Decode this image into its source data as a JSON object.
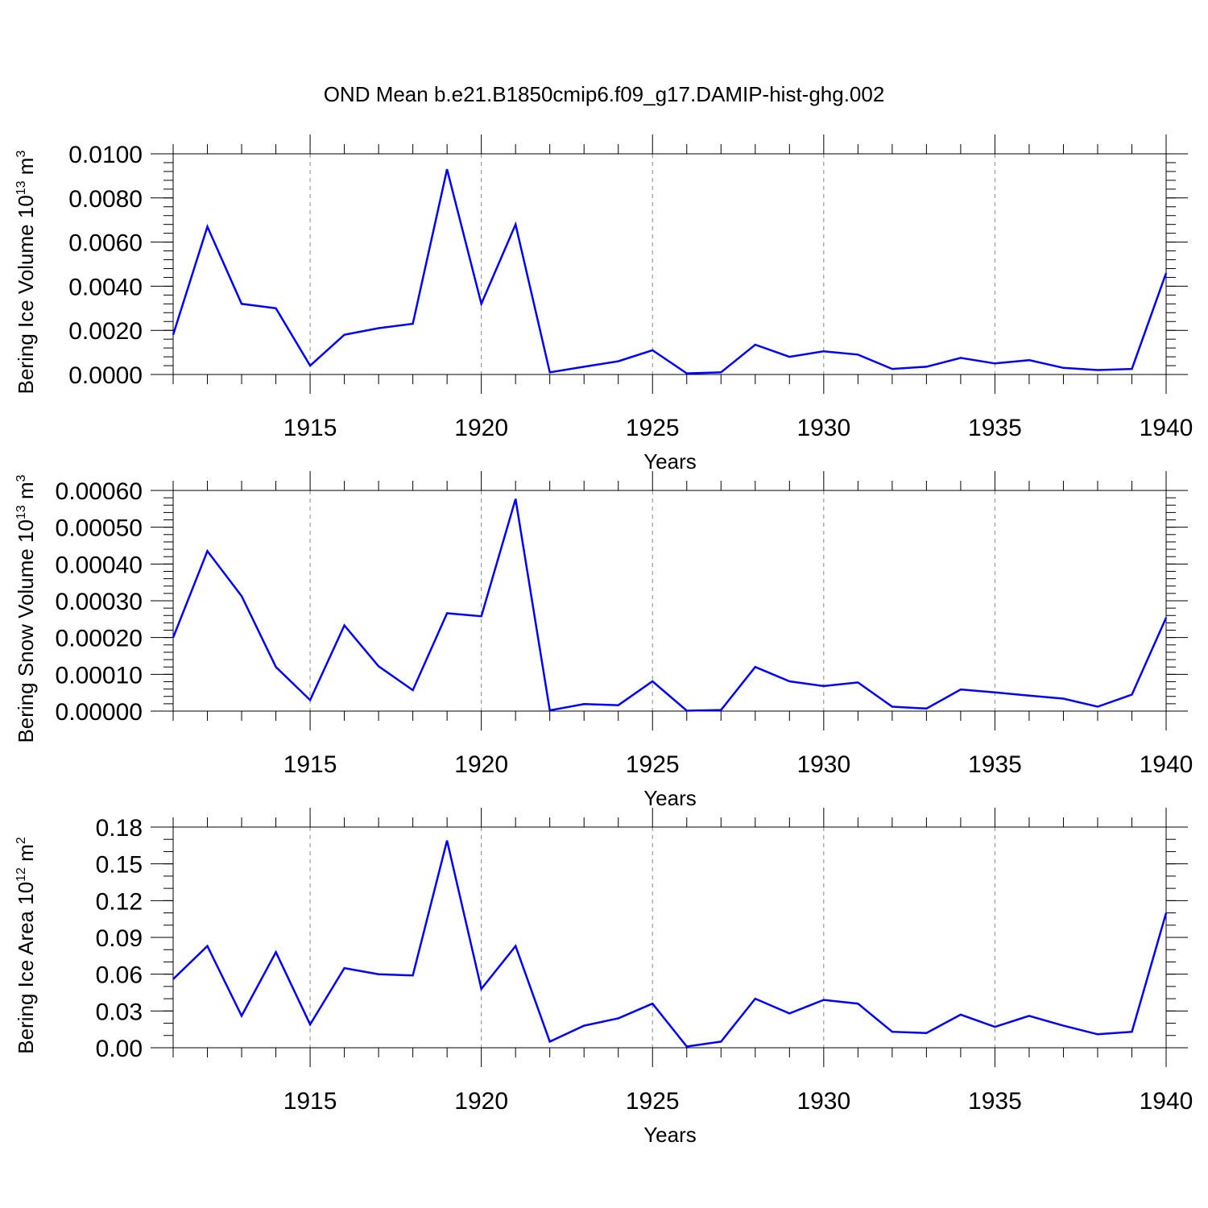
{
  "figure": {
    "title": "OND Mean b.e21.B1850cmip6.f09_g17.DAMIP-hist-ghg.002",
    "line_color": "#0000ff"
  },
  "chart_data": [
    {
      "type": "line",
      "ylabel": {
        "base": "Bering Ice Volume 10",
        "exp": "13",
        "unit": " m",
        "unit_exp": "3"
      },
      "xlabel": "Years",
      "xlim": [
        1911,
        1940
      ],
      "ylim": [
        0,
        0.01
      ],
      "x_major_ticks": [
        1915,
        1920,
        1925,
        1930,
        1935,
        1940
      ],
      "y_ticks": [
        {
          "value": 0.0,
          "label": "0.0000"
        },
        {
          "value": 0.002,
          "label": "0.0020"
        },
        {
          "value": 0.004,
          "label": "0.0040"
        },
        {
          "value": 0.006,
          "label": "0.0060"
        },
        {
          "value": 0.008,
          "label": "0.0080"
        },
        {
          "value": 0.01,
          "label": "0.0100"
        }
      ],
      "y_minor_step": 0.0004,
      "grid": "vertical dashed at major x ticks",
      "series": [
        {
          "name": "Bering Ice Volume",
          "x": [
            1911,
            1912,
            1913,
            1914,
            1915,
            1916,
            1917,
            1918,
            1919,
            1920,
            1921,
            1922,
            1923,
            1924,
            1925,
            1926,
            1927,
            1928,
            1929,
            1930,
            1931,
            1932,
            1933,
            1934,
            1935,
            1936,
            1937,
            1938,
            1939,
            1940
          ],
          "values": [
            0.0018,
            0.0067,
            0.0032,
            0.003,
            0.0004,
            0.0018,
            0.0021,
            0.0023,
            0.0093,
            0.0032,
            0.0068,
            0.0001,
            0.00035,
            0.0006,
            0.0011,
            5e-05,
            0.0001,
            0.00135,
            0.0008,
            0.00105,
            0.0009,
            0.00025,
            0.00035,
            0.00075,
            0.0005,
            0.00065,
            0.0003,
            0.0002,
            0.00025,
            0.0046
          ]
        }
      ]
    },
    {
      "type": "line",
      "ylabel": {
        "base": "Bering Snow Volume 10",
        "exp": "13",
        "unit": " m",
        "unit_exp": "3"
      },
      "xlabel": "Years",
      "xlim": [
        1911,
        1940
      ],
      "ylim": [
        0,
        0.0006
      ],
      "x_major_ticks": [
        1915,
        1920,
        1925,
        1930,
        1935,
        1940
      ],
      "y_ticks": [
        {
          "value": 0.0,
          "label": "0.00000"
        },
        {
          "value": 0.0001,
          "label": "0.00010"
        },
        {
          "value": 0.0002,
          "label": "0.00020"
        },
        {
          "value": 0.0003,
          "label": "0.00030"
        },
        {
          "value": 0.0004,
          "label": "0.00040"
        },
        {
          "value": 0.0005,
          "label": "0.00050"
        },
        {
          "value": 0.0006,
          "label": "0.00060"
        }
      ],
      "y_minor_step": 2e-05,
      "grid": "vertical dashed at major x ticks",
      "series": [
        {
          "name": "Bering Snow Volume",
          "x": [
            1911,
            1912,
            1913,
            1914,
            1915,
            1916,
            1917,
            1918,
            1919,
            1920,
            1921,
            1922,
            1923,
            1924,
            1925,
            1926,
            1927,
            1928,
            1929,
            1930,
            1931,
            1932,
            1933,
            1934,
            1935,
            1936,
            1937,
            1938,
            1939,
            1940
          ],
          "values": [
            0.0002,
            0.000435,
            0.000313,
            0.00012,
            3e-05,
            0.000233,
            0.000122,
            5.7e-05,
            0.000266,
            0.000258,
            0.000577,
            2e-06,
            1.9e-05,
            1.6e-05,
            8.1e-05,
            1e-06,
            3e-06,
            0.00012,
            8.1e-05,
            6.8e-05,
            7.8e-05,
            1.2e-05,
            7e-06,
            5.9e-05,
            5.1e-05,
            4.2e-05,
            3.4e-05,
            1.2e-05,
            4.5e-05,
            0.000254
          ]
        }
      ]
    },
    {
      "type": "line",
      "ylabel": {
        "base": "Bering Ice Area 10",
        "exp": "12",
        "unit": " m",
        "unit_exp": "2"
      },
      "xlabel": "Years",
      "xlim": [
        1911,
        1940
      ],
      "ylim": [
        0,
        0.18
      ],
      "x_major_ticks": [
        1915,
        1920,
        1925,
        1930,
        1935,
        1940
      ],
      "y_ticks": [
        {
          "value": 0.0,
          "label": "0.00"
        },
        {
          "value": 0.03,
          "label": "0.03"
        },
        {
          "value": 0.06,
          "label": "0.06"
        },
        {
          "value": 0.09,
          "label": "0.09"
        },
        {
          "value": 0.12,
          "label": "0.12"
        },
        {
          "value": 0.15,
          "label": "0.15"
        },
        {
          "value": 0.18,
          "label": "0.18"
        }
      ],
      "y_minor_step": 0.01,
      "grid": "vertical dashed at major x ticks",
      "series": [
        {
          "name": "Bering Ice Area",
          "x": [
            1911,
            1912,
            1913,
            1914,
            1915,
            1916,
            1917,
            1918,
            1919,
            1920,
            1921,
            1922,
            1923,
            1924,
            1925,
            1926,
            1927,
            1928,
            1929,
            1930,
            1931,
            1932,
            1933,
            1934,
            1935,
            1936,
            1937,
            1938,
            1939,
            1940
          ],
          "values": [
            0.056,
            0.083,
            0.026,
            0.078,
            0.019,
            0.065,
            0.06,
            0.059,
            0.169,
            0.048,
            0.083,
            0.005,
            0.018,
            0.024,
            0.036,
            0.001,
            0.005,
            0.04,
            0.028,
            0.039,
            0.036,
            0.013,
            0.012,
            0.027,
            0.017,
            0.026,
            0.018,
            0.011,
            0.013,
            0.11
          ]
        }
      ]
    }
  ]
}
